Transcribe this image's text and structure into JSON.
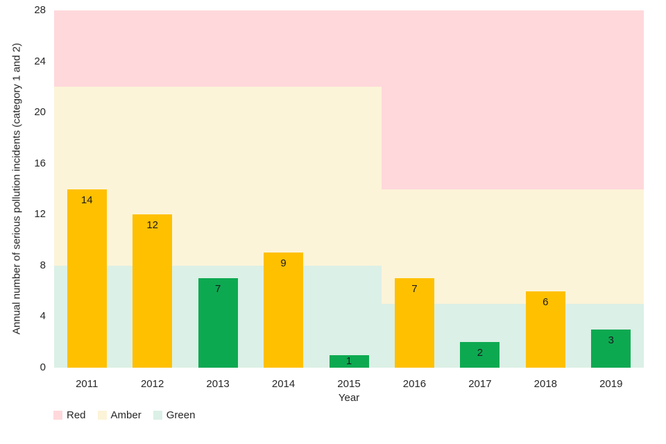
{
  "chart_data": {
    "type": "bar",
    "title": "",
    "xlabel": "Year",
    "ylabel": "Annual number of serious pollution incidents (category 1 and 2)",
    "ylim": [
      0,
      28
    ],
    "yticks": [
      0,
      4,
      8,
      12,
      16,
      20,
      24,
      28
    ],
    "grid": false,
    "categories": [
      "2011",
      "2012",
      "2013",
      "2014",
      "2015",
      "2016",
      "2017",
      "2018",
      "2019"
    ],
    "values": [
      14,
      12,
      7,
      9,
      1,
      7,
      2,
      6,
      3
    ],
    "bar_statuses": [
      "amber",
      "amber",
      "green",
      "amber",
      "green",
      "amber",
      "green",
      "amber",
      "green"
    ],
    "bar_colors": {
      "amber": "#FFC000",
      "green": "#0DA951"
    },
    "value_label_color": "#1a1a1a",
    "bands": [
      {
        "from_category": "2011",
        "to_category": "2015",
        "slot_start": 0,
        "slot_end": 5,
        "green_max": 8,
        "amber_max": 22,
        "red_max": 28
      },
      {
        "from_category": "2016",
        "to_category": "2019",
        "slot_start": 5,
        "slot_end": 9,
        "green_max": 5,
        "amber_max": 14,
        "red_max": 28
      }
    ],
    "zone_colors": {
      "red": "#FFD8DB",
      "amber": "#FCF4D8",
      "green": "#DBF0E6"
    },
    "legend": [
      {
        "label": "Red",
        "zone": "red",
        "color": "#FFD8DB"
      },
      {
        "label": "Amber",
        "zone": "amber",
        "color": "#FCF4D8"
      },
      {
        "label": "Green",
        "zone": "green",
        "color": "#DBF0E6"
      }
    ],
    "legend_position": "bottom-left"
  }
}
